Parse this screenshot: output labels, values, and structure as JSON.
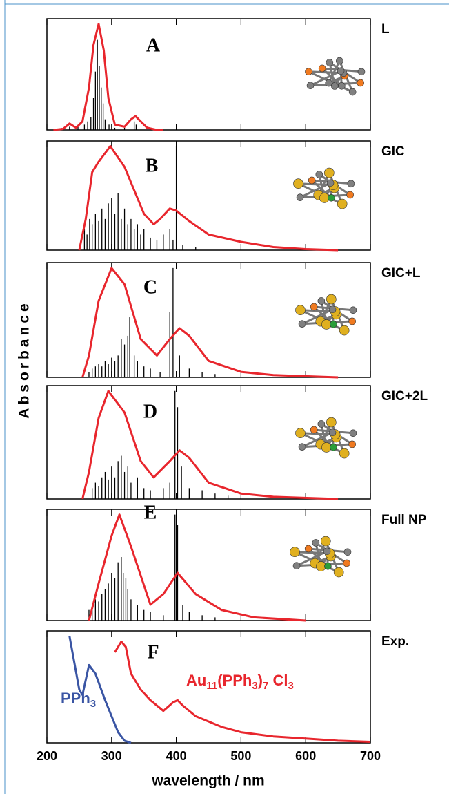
{
  "chart_data": {
    "type": "stacked-spectra",
    "xlabel": "wavelength / nm",
    "ylabel": "Absorbance",
    "xlim": [
      200,
      700
    ],
    "xticks": [
      200,
      300,
      400,
      500,
      600,
      700
    ],
    "ylim": [
      0,
      1.05
    ],
    "panels": [
      {
        "letter": "A",
        "label": "L",
        "curves": [
          {
            "color": "#e8262d",
            "x": [
              210,
              225,
              235,
              245,
              255,
              265,
              272,
              280,
              288,
              295,
              305,
              320,
              330,
              337,
              345,
              355,
              370,
              380
            ],
            "values": [
              0,
              0.01,
              0.06,
              0.02,
              0.08,
              0.4,
              0.8,
              1.0,
              0.75,
              0.3,
              0.05,
              0.03,
              0.1,
              0.13,
              0.08,
              0.02,
              0,
              0
            ]
          }
        ],
        "sticks": {
          "color": "#000000",
          "x": [
            222,
            235,
            248,
            258,
            263,
            268,
            272,
            275,
            278,
            281,
            284,
            287,
            290,
            296,
            305,
            320,
            335,
            338
          ],
          "values": [
            0.02,
            0.03,
            0.03,
            0.05,
            0.08,
            0.12,
            0.3,
            0.55,
            0.85,
            0.6,
            0.4,
            0.25,
            0.1,
            0.05,
            0.02,
            0.02,
            0.08,
            0.05
          ]
        }
      },
      {
        "letter": "B",
        "label": "GIC",
        "curves": [
          {
            "color": "#e8262d",
            "x": [
              250,
              260,
              270,
              280,
              298,
              320,
              350,
              365,
              375,
              390,
              400,
              420,
              450,
              500,
              550,
              600,
              650
            ],
            "values": [
              0,
              0.3,
              0.75,
              0.85,
              1.0,
              0.8,
              0.35,
              0.25,
              0.3,
              0.4,
              0.38,
              0.28,
              0.15,
              0.08,
              0.03,
              0.01,
              0
            ]
          }
        ],
        "sticks": {
          "color": "#000000",
          "x": [
            258,
            262,
            266,
            270,
            275,
            280,
            285,
            290,
            295,
            300,
            305,
            310,
            315,
            320,
            325,
            330,
            335,
            340,
            345,
            350,
            360,
            370,
            380,
            390,
            395,
            400,
            410,
            430
          ],
          "values": [
            0.2,
            0.15,
            0.3,
            0.25,
            0.35,
            0.28,
            0.4,
            0.3,
            0.45,
            0.5,
            0.35,
            0.55,
            0.3,
            0.4,
            0.25,
            0.3,
            0.2,
            0.25,
            0.15,
            0.2,
            0.12,
            0.1,
            0.15,
            0.2,
            0.1,
            1.0,
            0.05,
            0.03
          ]
        }
      },
      {
        "letter": "C",
        "label": "GIC+L",
        "curves": [
          {
            "color": "#e8262d",
            "x": [
              255,
              265,
              280,
              300,
              320,
              345,
              370,
              390,
              405,
              420,
              450,
              500,
              550,
              650
            ],
            "values": [
              0,
              0.2,
              0.7,
              1.0,
              0.85,
              0.35,
              0.2,
              0.35,
              0.45,
              0.38,
              0.15,
              0.05,
              0.02,
              0
            ]
          }
        ],
        "sticks": {
          "color": "#000000",
          "x": [
            265,
            270,
            275,
            280,
            285,
            290,
            295,
            300,
            305,
            310,
            315,
            320,
            325,
            328,
            335,
            340,
            350,
            360,
            375,
            390,
            395,
            405,
            420,
            440,
            460
          ],
          "values": [
            0.05,
            0.08,
            0.1,
            0.12,
            0.1,
            0.15,
            0.12,
            0.18,
            0.15,
            0.2,
            0.35,
            0.3,
            0.38,
            0.55,
            0.2,
            0.15,
            0.1,
            0.08,
            0.05,
            0.6,
            1.0,
            0.2,
            0.08,
            0.05,
            0.03
          ]
        }
      },
      {
        "letter": "D",
        "label": "GIC+2L",
        "curves": [
          {
            "color": "#e8262d",
            "x": [
              255,
              265,
              280,
              295,
              320,
              345,
              365,
              390,
              405,
              420,
              450,
              500,
              550,
              650
            ],
            "values": [
              0,
              0.25,
              0.75,
              1.0,
              0.8,
              0.35,
              0.2,
              0.35,
              0.45,
              0.38,
              0.15,
              0.05,
              0.02,
              0
            ]
          }
        ],
        "sticks": {
          "color": "#000000",
          "x": [
            270,
            275,
            280,
            285,
            290,
            295,
            300,
            305,
            310,
            315,
            320,
            325,
            330,
            340,
            350,
            360,
            380,
            390,
            398,
            402,
            408,
            420,
            440,
            460,
            480
          ],
          "values": [
            0.1,
            0.15,
            0.12,
            0.2,
            0.25,
            0.18,
            0.3,
            0.2,
            0.35,
            0.4,
            0.25,
            0.3,
            0.15,
            0.2,
            0.1,
            0.08,
            0.1,
            0.15,
            1.0,
            0.85,
            0.3,
            0.1,
            0.08,
            0.05,
            0.03
          ]
        }
      },
      {
        "letter": "E",
        "label": "Full NP",
        "curves": [
          {
            "color": "#e8262d",
            "x": [
              265,
              280,
              300,
              312,
              330,
              360,
              380,
              402,
              430,
              470,
              520,
              600
            ],
            "values": [
              0,
              0.35,
              0.8,
              1.0,
              0.7,
              0.15,
              0.25,
              0.45,
              0.25,
              0.1,
              0.03,
              0
            ]
          }
        ],
        "sticks": {
          "color": "#000000",
          "x": [
            265,
            270,
            275,
            280,
            285,
            290,
            295,
            300,
            305,
            310,
            315,
            318,
            322,
            325,
            330,
            340,
            350,
            360,
            380,
            398,
            400,
            402,
            410,
            420,
            440,
            460
          ],
          "values": [
            0.1,
            0.15,
            0.2,
            0.18,
            0.25,
            0.3,
            0.35,
            0.45,
            0.4,
            0.55,
            0.6,
            0.45,
            0.4,
            0.3,
            0.2,
            0.15,
            0.1,
            0.08,
            0.05,
            1.0,
            1.0,
            0.9,
            0.15,
            0.08,
            0.05,
            0.03
          ]
        }
      },
      {
        "letter": "F",
        "label": "Exp.",
        "curves": [
          {
            "color": "#3a55a4",
            "x": [
              235,
              250,
              255,
              265,
              275,
              290,
              300,
              310,
              320,
              330
            ],
            "values": [
              1.0,
              0.5,
              0.45,
              0.73,
              0.65,
              0.4,
              0.25,
              0.1,
              0.02,
              0
            ]
          },
          {
            "color": "#e8262d",
            "x": [
              305,
              315,
              322,
              330,
              345,
              360,
              380,
              395,
              402,
              410,
              430,
              470,
              500,
              550,
              600,
              650,
              700
            ],
            "values": [
              0.85,
              0.95,
              0.9,
              0.65,
              0.5,
              0.4,
              0.3,
              0.38,
              0.4,
              0.35,
              0.25,
              0.15,
              0.1,
              0.06,
              0.04,
              0.02,
              0.01
            ]
          }
        ],
        "annotations": [
          {
            "color": "#3a55a4",
            "parts": [
              {
                "text": "PPh"
              },
              {
                "text": "3",
                "sub": true
              }
            ]
          },
          {
            "color": "#e8262d",
            "parts": [
              {
                "text": "Au"
              },
              {
                "text": "11",
                "sub": true
              },
              {
                "text": "(PPh"
              },
              {
                "text": "3",
                "sub": true
              },
              {
                "text": ")"
              },
              {
                "text": "7",
                "sub": true
              },
              {
                "text": " Cl"
              },
              {
                "text": "3",
                "sub": true
              }
            ]
          }
        ]
      }
    ]
  }
}
